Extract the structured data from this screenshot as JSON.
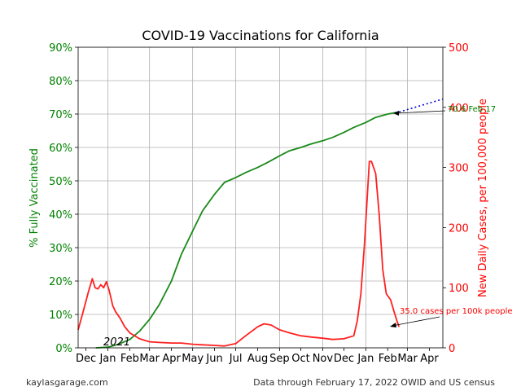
{
  "footer": {
    "left": "kaylasgarage.com",
    "right": "Data through February 17, 2022 OWID and US census"
  },
  "colors": {
    "vaccinated": "#1a8a1a",
    "cases": "#ff2020",
    "projection": "#0000cc",
    "left_axis": "#008000",
    "right_axis": "#ff0000"
  },
  "chart_data": {
    "type": "line",
    "title": "COVID-19 Vaccinations for California",
    "xlabel": "",
    "ylabel_left": "% Fully Vaccinated",
    "ylabel_right": "New Daily Cases, per 100,000 people",
    "x_start": "2020-11-20",
    "x_end": "2022-04-20",
    "x_ticks": [
      {
        "date": "2020-12-01",
        "label": "Dec"
      },
      {
        "date": "2021-01-01",
        "label": "Jan"
      },
      {
        "date": "2021-02-01",
        "label": "Feb"
      },
      {
        "date": "2021-03-01",
        "label": "Mar"
      },
      {
        "date": "2021-04-01",
        "label": "Apr"
      },
      {
        "date": "2021-05-01",
        "label": "May"
      },
      {
        "date": "2021-06-01",
        "label": "Jun"
      },
      {
        "date": "2021-07-01",
        "label": "Jul"
      },
      {
        "date": "2021-08-01",
        "label": "Aug"
      },
      {
        "date": "2021-09-01",
        "label": "Sep"
      },
      {
        "date": "2021-10-01",
        "label": "Oct"
      },
      {
        "date": "2021-11-01",
        "label": "Nov"
      },
      {
        "date": "2021-12-01",
        "label": "Dec"
      },
      {
        "date": "2022-01-01",
        "label": "Jan"
      },
      {
        "date": "2022-02-01",
        "label": "Feb"
      },
      {
        "date": "2022-03-01",
        "label": "Mar"
      },
      {
        "date": "2022-04-01",
        "label": "Apr"
      }
    ],
    "year_label": "2021",
    "ylim_left": [
      0,
      90
    ],
    "yticks_left": [
      "0%",
      "10%",
      "20%",
      "30%",
      "40%",
      "50%",
      "60%",
      "70%",
      "80%",
      "90%"
    ],
    "ylim_right": [
      0,
      500
    ],
    "yticks_right": [
      "0",
      "100",
      "200",
      "300",
      "400",
      "500"
    ],
    "grid": true,
    "series": [
      {
        "name": "% Fully Vaccinated",
        "axis": "left",
        "x": [
          "2020-12-15",
          "2021-01-01",
          "2021-01-15",
          "2021-02-01",
          "2021-02-15",
          "2021-03-01",
          "2021-03-15",
          "2021-04-01",
          "2021-04-15",
          "2021-05-01",
          "2021-05-15",
          "2021-06-01",
          "2021-06-15",
          "2021-07-01",
          "2021-07-15",
          "2021-08-01",
          "2021-08-15",
          "2021-09-01",
          "2021-09-15",
          "2021-10-01",
          "2021-10-15",
          "2021-11-01",
          "2021-11-15",
          "2021-12-01",
          "2021-12-15",
          "2022-01-01",
          "2022-01-15",
          "2022-02-01",
          "2022-02-17"
        ],
        "values": [
          0,
          0.2,
          1,
          2.5,
          5,
          8.5,
          13,
          20,
          28,
          35,
          41,
          46,
          49.5,
          51,
          52.5,
          54,
          55.5,
          57.5,
          59,
          60,
          61,
          62,
          63,
          64.5,
          66,
          67.5,
          69,
          70,
          70.6
        ]
      },
      {
        "name": "Projection",
        "axis": "left",
        "style": "dotted",
        "x": [
          "2022-02-17",
          "2022-04-20"
        ],
        "values": [
          70.6,
          74.5
        ]
      },
      {
        "name": "New Daily Cases",
        "axis": "right",
        "x": [
          "2020-11-20",
          "2020-11-27",
          "2020-12-05",
          "2020-12-10",
          "2020-12-14",
          "2020-12-18",
          "2020-12-22",
          "2020-12-26",
          "2020-12-30",
          "2021-01-03",
          "2021-01-08",
          "2021-01-12",
          "2021-01-18",
          "2021-01-25",
          "2021-02-01",
          "2021-02-15",
          "2021-03-01",
          "2021-03-15",
          "2021-04-01",
          "2021-04-15",
          "2021-05-01",
          "2021-05-15",
          "2021-06-01",
          "2021-06-15",
          "2021-07-01",
          "2021-07-15",
          "2021-08-01",
          "2021-08-10",
          "2021-08-20",
          "2021-09-01",
          "2021-09-15",
          "2021-10-01",
          "2021-10-15",
          "2021-11-01",
          "2021-11-15",
          "2021-12-01",
          "2021-12-15",
          "2021-12-20",
          "2021-12-25",
          "2021-12-30",
          "2022-01-03",
          "2022-01-06",
          "2022-01-09",
          "2022-01-12",
          "2022-01-15",
          "2022-01-20",
          "2022-01-25",
          "2022-01-30",
          "2022-02-05",
          "2022-02-10",
          "2022-02-14",
          "2022-02-17"
        ],
        "values": [
          30,
          60,
          95,
          115,
          100,
          98,
          105,
          100,
          110,
          95,
          70,
          60,
          50,
          35,
          25,
          15,
          10,
          9,
          8,
          8,
          6,
          5,
          4,
          3,
          7,
          20,
          35,
          40,
          38,
          30,
          25,
          20,
          18,
          16,
          14,
          15,
          20,
          45,
          90,
          170,
          250,
          310,
          310,
          300,
          290,
          220,
          130,
          90,
          80,
          60,
          45,
          35
        ]
      }
    ],
    "annotations": [
      {
        "text": "70.6 Feb 17",
        "color": "green"
      },
      {
        "text": "35.0 cases per 100k people",
        "color": "red"
      }
    ]
  }
}
